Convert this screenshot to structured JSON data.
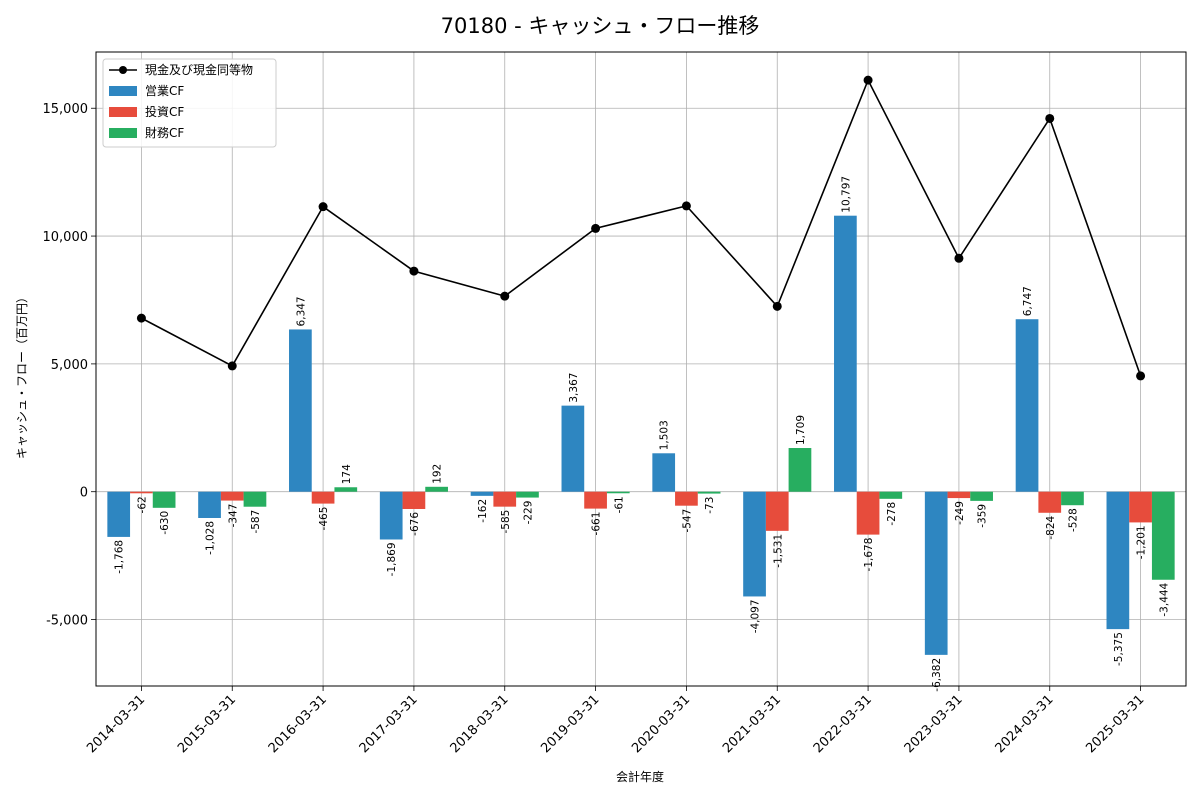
{
  "chart_data": {
    "type": "bar",
    "title": "70180 - キャッシュ・フロー推移",
    "xlabel": "会計年度",
    "ylabel": "キャッシュ・フロー（百万円）",
    "ylim": [
      -7600,
      17200
    ],
    "yticks": [
      -5000,
      0,
      5000,
      10000,
      15000
    ],
    "ytick_labels": [
      "-5,000",
      "0",
      "5,000",
      "10,000",
      "15,000"
    ],
    "grid": true,
    "legend_position": "top-left",
    "categories": [
      "2014-03-31",
      "2015-03-31",
      "2016-03-31",
      "2017-03-31",
      "2018-03-31",
      "2019-03-31",
      "2020-03-31",
      "2021-03-31",
      "2022-03-31",
      "2023-03-31",
      "2024-03-31",
      "2025-03-31"
    ],
    "series": [
      {
        "name": "営業CF",
        "kind": "bar",
        "color": "#2e86c1",
        "values": [
          -1768,
          -1028,
          6347,
          -1869,
          -162,
          3367,
          1503,
          -4097,
          10797,
          -6382,
          6747,
          -5375
        ],
        "labels": [
          "-1,768",
          "-1,028",
          "6,347",
          "-1,869",
          "-162",
          "3,367",
          "1,503",
          "-4,097",
          "10,797",
          "-6,382",
          "6,747",
          "-5,375"
        ]
      },
      {
        "name": "投資CF",
        "kind": "bar",
        "color": "#e74c3c",
        "values": [
          -62,
          -347,
          -465,
          -676,
          -585,
          -661,
          -547,
          -1531,
          -1678,
          -249,
          -824,
          -1201
        ],
        "labels": [
          "-62",
          "-347",
          "-465",
          "-676",
          "-585",
          "-661",
          "-547",
          "-1,531",
          "-1,678",
          "-249",
          "-824",
          "-1,201"
        ]
      },
      {
        "name": "財務CF",
        "kind": "bar",
        "color": "#27ae60",
        "values": [
          -630,
          -587,
          174,
          192,
          -229,
          -61,
          -73,
          1709,
          -278,
          -359,
          -528,
          -3444
        ],
        "labels": [
          "-630",
          "-587",
          "174",
          "192",
          "-229",
          "-61",
          "-73",
          "1,709",
          "-278",
          "-359",
          "-528",
          "-3,444"
        ]
      },
      {
        "name": "現金及び現金同等物",
        "kind": "line",
        "color": "#000000",
        "values": [
          6790,
          4920,
          11150,
          8630,
          7650,
          10300,
          11180,
          7250,
          16100,
          9130,
          14600,
          4530
        ]
      }
    ]
  }
}
